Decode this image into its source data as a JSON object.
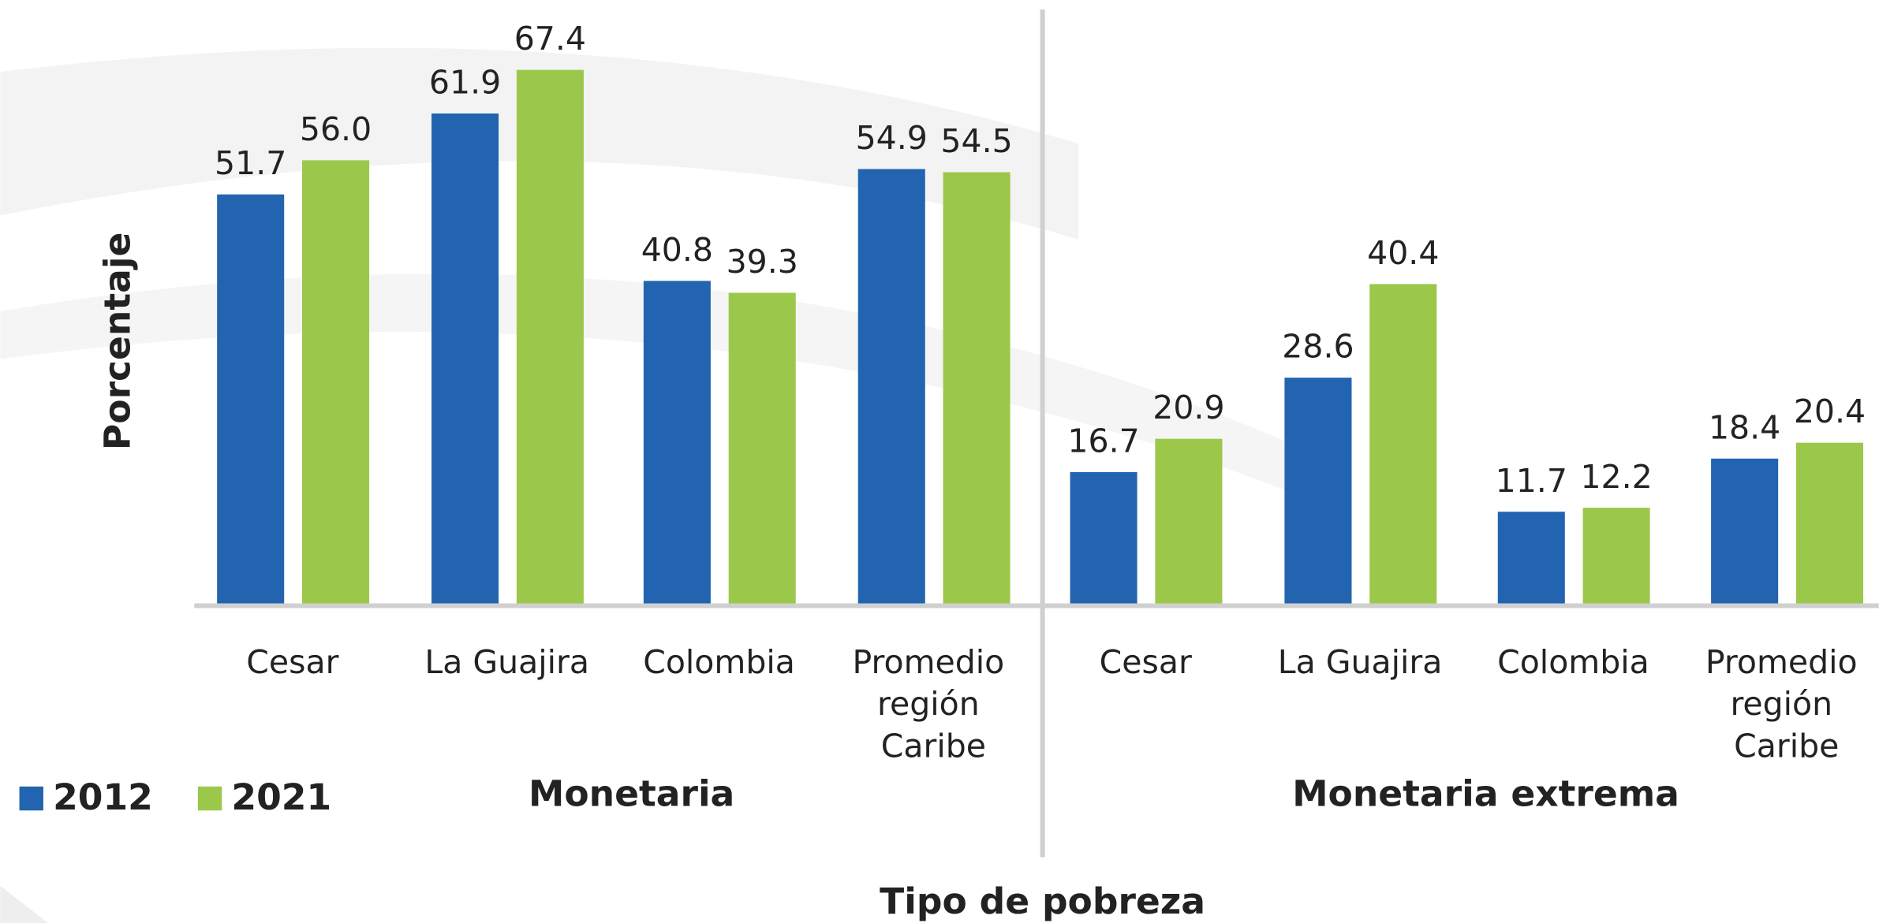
{
  "chart_data": {
    "type": "bar",
    "x_label": "Tipo de pobreza",
    "y_label": "Porcentaje",
    "groups": [
      "Monetaria",
      "Monetaria extrema"
    ],
    "categories": [
      "Cesar",
      "La Guajira",
      "Colombia",
      "Promedio región Caribe",
      "Cesar",
      "La Guajira",
      "Colombia",
      "Promedio región Caribe"
    ],
    "series": [
      {
        "name": "2012",
        "color": "#2264b0",
        "values": [
          51.7,
          61.9,
          40.8,
          54.9,
          16.7,
          28.6,
          11.7,
          18.4
        ],
        "value_labels": [
          "51.7",
          "61.9",
          "40.8",
          "54.9",
          "16.7",
          "28.6",
          "11.7",
          "18.4"
        ]
      },
      {
        "name": "2021",
        "color": "#9bc84a",
        "values": [
          56.0,
          67.4,
          39.3,
          54.5,
          20.9,
          40.4,
          12.2,
          20.4
        ],
        "value_labels": [
          "56.0",
          "67.4",
          "39.3",
          "54.5",
          "20.9",
          "40.4",
          "12.2",
          "20.4"
        ]
      }
    ],
    "ylim": [
      0,
      75
    ]
  }
}
